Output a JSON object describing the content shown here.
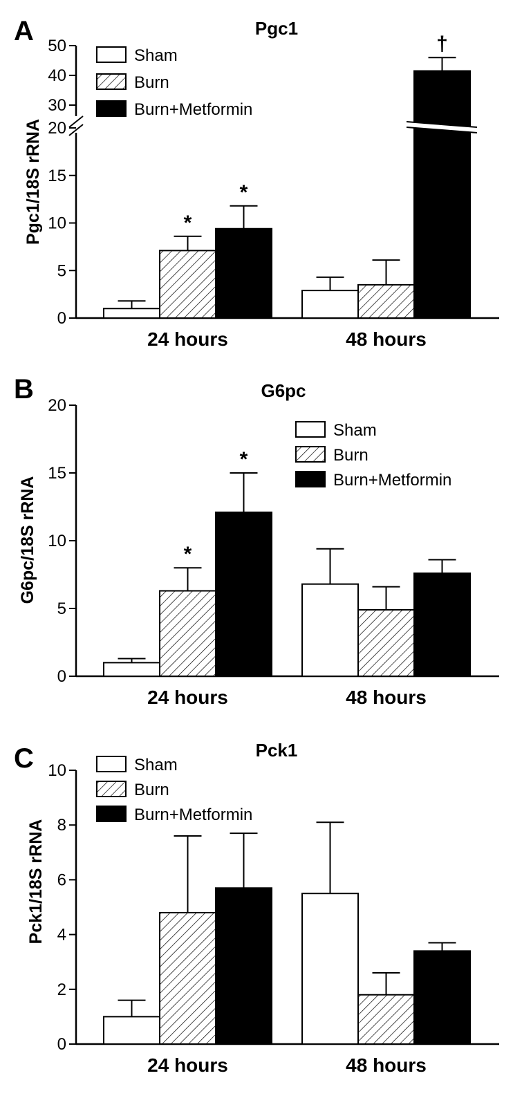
{
  "legend": [
    "Sham",
    "Burn",
    "Burn+Metformin"
  ],
  "colors": {
    "sham": "#ffffff",
    "burn": "hatch",
    "burn_metformin": "#000000"
  },
  "chart_data": [
    {
      "panel": "A",
      "type": "bar",
      "title": "Pgc1",
      "ylabel": "Pgc1/18S rRNA",
      "categories": [
        "24 hours",
        "48 hours"
      ],
      "broken_axis": {
        "break_between": [
          20,
          30
        ]
      },
      "yticks": [
        0,
        5,
        10,
        15,
        20,
        30,
        40,
        50
      ],
      "ylim": [
        0,
        50
      ],
      "legend_position": "top-left",
      "series": [
        {
          "name": "Sham",
          "values": [
            1.0,
            2.9
          ],
          "errors": [
            0.8,
            1.4
          ],
          "sig": [
            "",
            ""
          ]
        },
        {
          "name": "Burn",
          "values": [
            7.1,
            3.5
          ],
          "errors": [
            1.5,
            2.6
          ],
          "sig": [
            "*",
            ""
          ]
        },
        {
          "name": "Burn+Metformin",
          "values": [
            9.4,
            41.5
          ],
          "errors": [
            2.4,
            4.5
          ],
          "sig": [
            "*",
            "†"
          ]
        }
      ]
    },
    {
      "panel": "B",
      "type": "bar",
      "title": "G6pc",
      "ylabel": "G6pc/18S rRNA",
      "categories": [
        "24 hours",
        "48 hours"
      ],
      "yticks": [
        0,
        5,
        10,
        15,
        20
      ],
      "ylim": [
        0,
        20
      ],
      "legend_position": "top-right",
      "series": [
        {
          "name": "Sham",
          "values": [
            1.0,
            6.8
          ],
          "errors": [
            0.3,
            2.6
          ],
          "sig": [
            "",
            ""
          ]
        },
        {
          "name": "Burn",
          "values": [
            6.3,
            4.9
          ],
          "errors": [
            1.7,
            1.7
          ],
          "sig": [
            "*",
            ""
          ]
        },
        {
          "name": "Burn+Metformin",
          "values": [
            12.1,
            7.6
          ],
          "errors": [
            2.9,
            1.0
          ],
          "sig": [
            "*",
            ""
          ]
        }
      ]
    },
    {
      "panel": "C",
      "type": "bar",
      "title": "Pck1",
      "ylabel": "Pck1/18S rRNA",
      "categories": [
        "24 hours",
        "48 hours"
      ],
      "yticks": [
        0,
        2,
        4,
        6,
        8,
        10
      ],
      "ylim": [
        0,
        10
      ],
      "legend_position": "top-left",
      "series": [
        {
          "name": "Sham",
          "values": [
            1.0,
            5.5
          ],
          "errors": [
            0.6,
            2.6
          ],
          "sig": [
            "",
            ""
          ]
        },
        {
          "name": "Burn",
          "values": [
            4.8,
            1.8
          ],
          "errors": [
            2.8,
            0.8
          ],
          "sig": [
            "",
            ""
          ]
        },
        {
          "name": "Burn+Metformin",
          "values": [
            5.7,
            3.4
          ],
          "errors": [
            2.0,
            0.3
          ],
          "sig": [
            "",
            ""
          ]
        }
      ]
    }
  ]
}
